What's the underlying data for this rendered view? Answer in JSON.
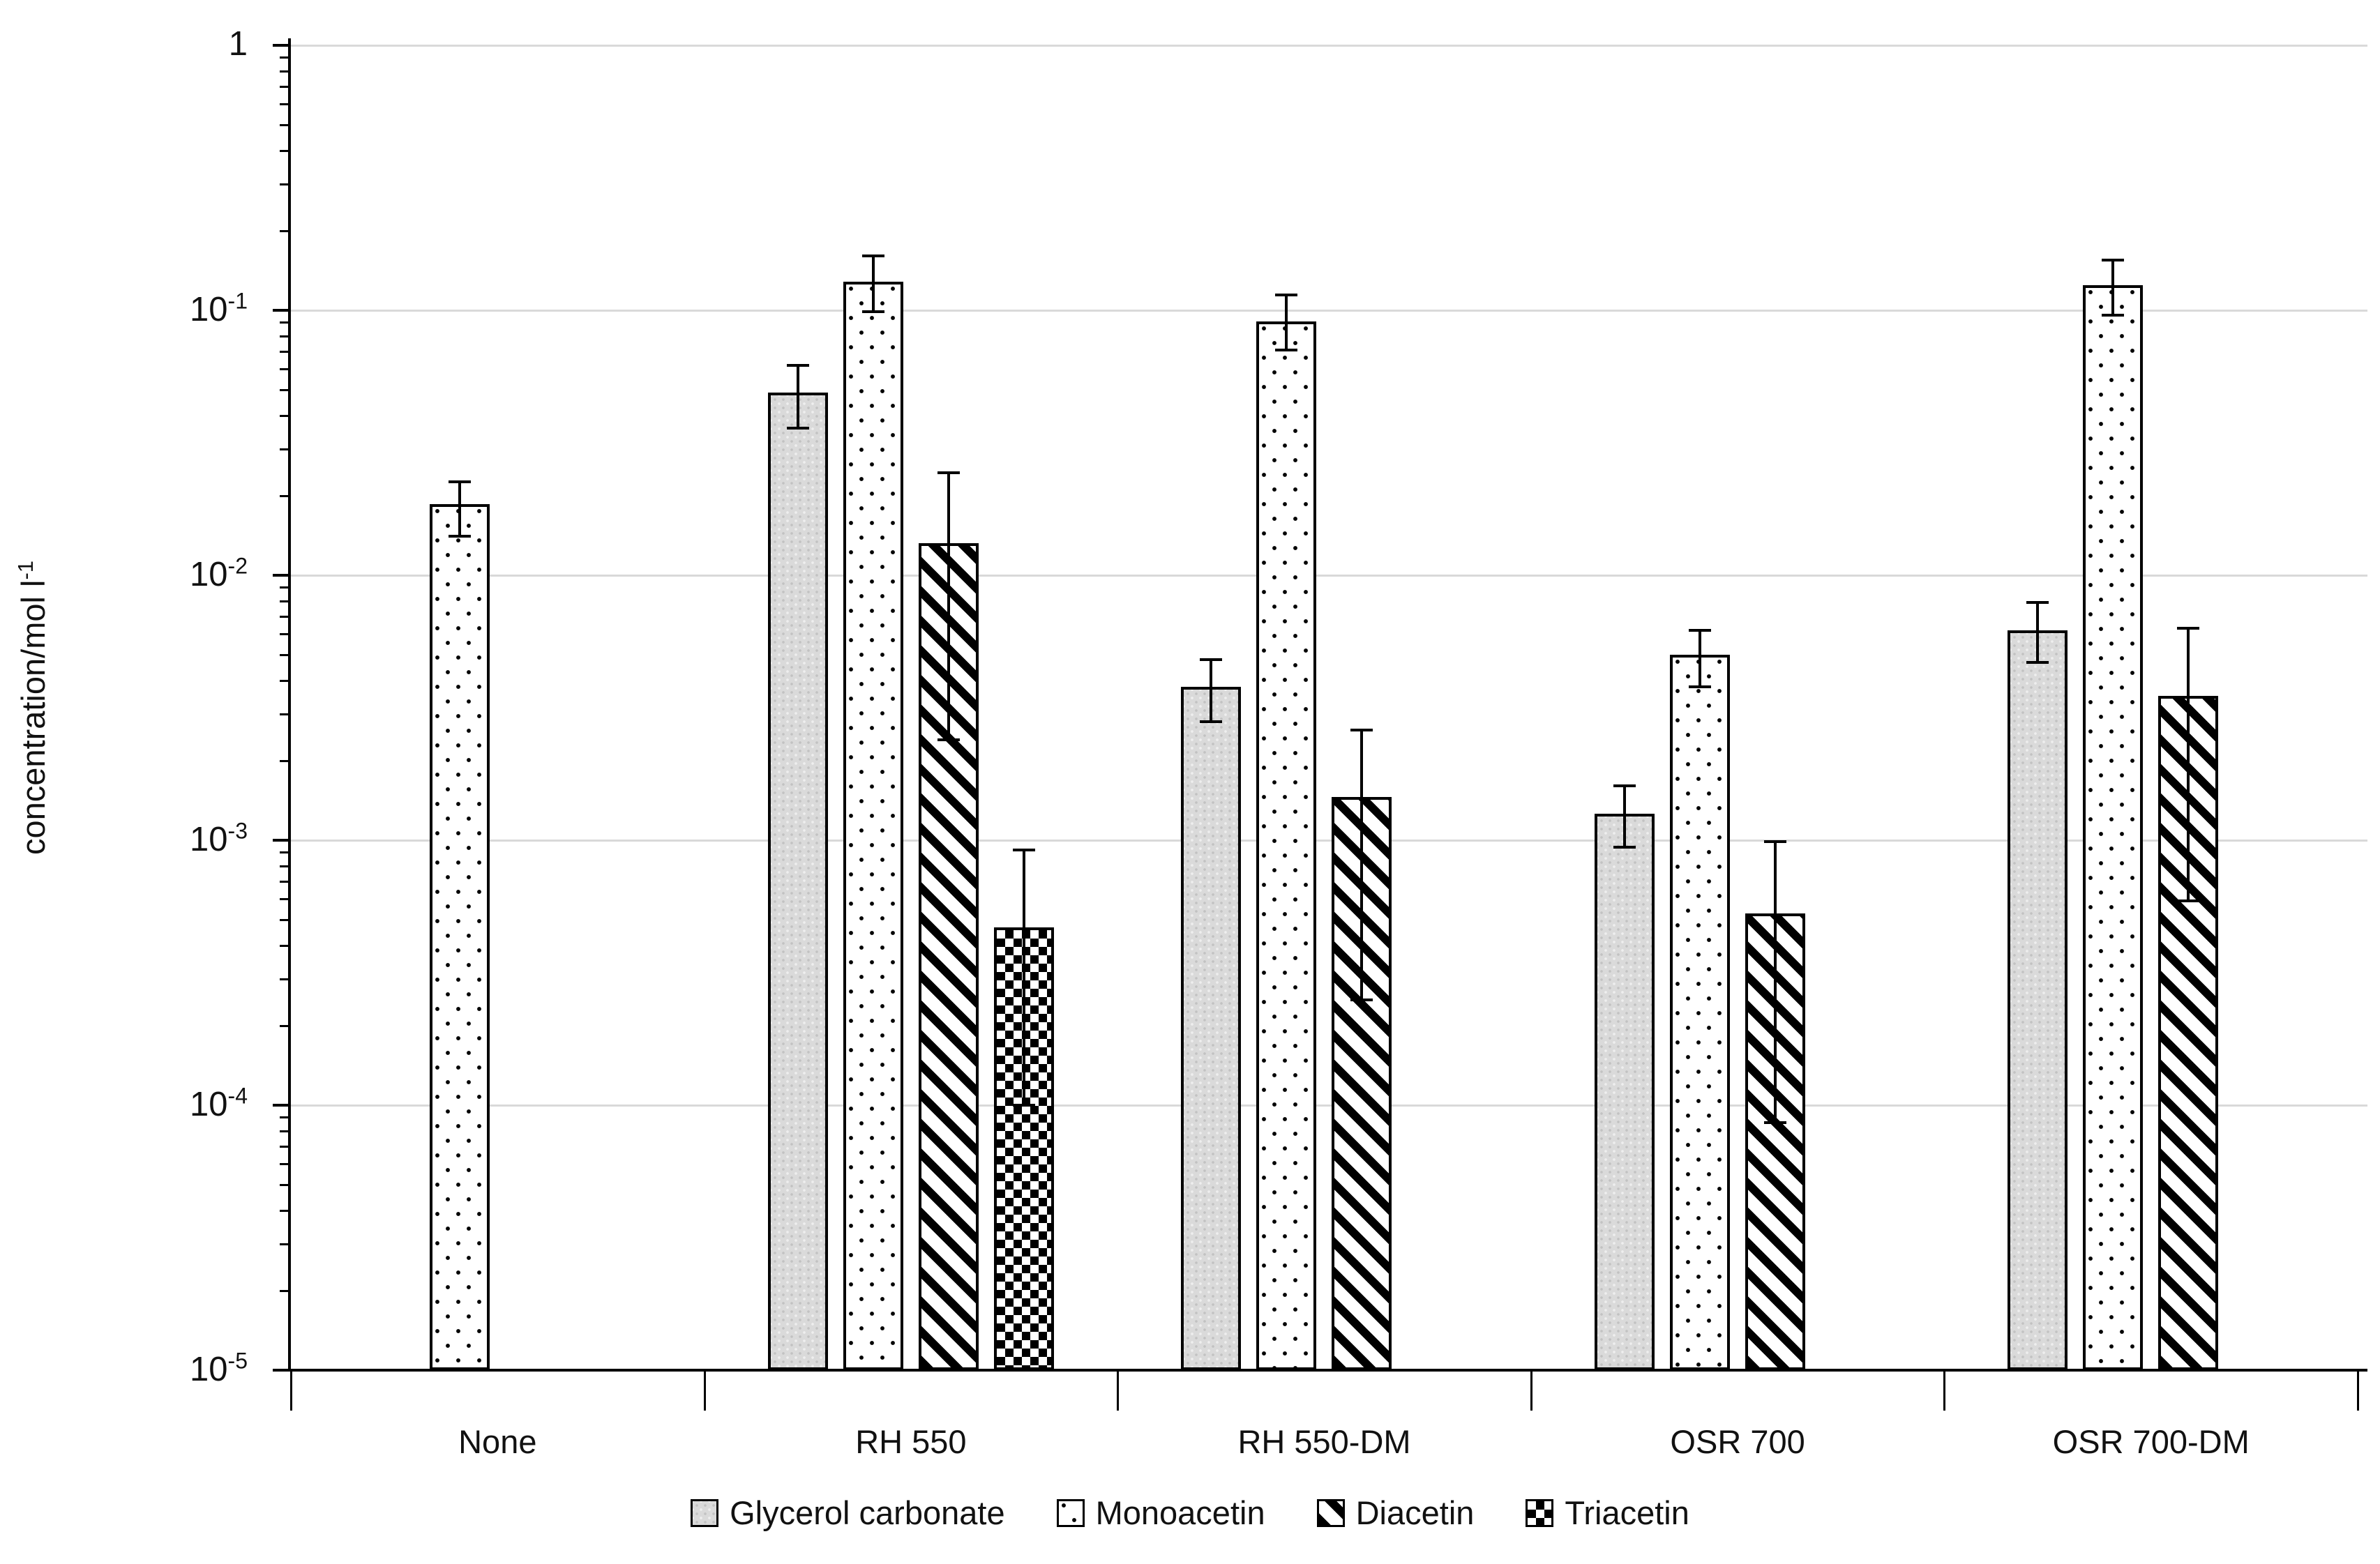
{
  "chart_data": {
    "type": "bar",
    "title": "",
    "ylabel_base": "concentration/mol l",
    "ylabel_sup": "-1",
    "xlabel": "",
    "y_scale": "log",
    "ylim": [
      1e-05,
      1
    ],
    "grid": "horizontal-decades",
    "legend_position": "bottom",
    "categories": [
      "None",
      "RH 550",
      "RH 550-DM",
      "OSR 700",
      "OSR 700-DM"
    ],
    "y_ticks": [
      {
        "base": "1",
        "exp": "",
        "value": 1
      },
      {
        "base": "10",
        "exp": "-1",
        "value": 0.1
      },
      {
        "base": "10",
        "exp": "-2",
        "value": 0.01
      },
      {
        "base": "10",
        "exp": "-3",
        "value": 0.001
      },
      {
        "base": "10",
        "exp": "-4",
        "value": 0.0001
      },
      {
        "base": "10",
        "exp": "-5",
        "value": 1e-05
      }
    ],
    "series": [
      {
        "name": "Glycerol carbonate",
        "pattern": "speckle-gray",
        "values": [
          null,
          0.049,
          0.0038,
          0.00126,
          0.0062
        ],
        "err_low": [
          null,
          0.036,
          0.0028,
          0.00094,
          0.0047
        ],
        "err_high": [
          null,
          0.062,
          0.0048,
          0.0016,
          0.0079
        ]
      },
      {
        "name": "Monoacetin",
        "pattern": "dots",
        "values": [
          0.0185,
          0.128,
          0.091,
          0.005,
          0.124
        ],
        "err_low": [
          0.014,
          0.099,
          0.071,
          0.0038,
          0.096
        ],
        "err_high": [
          0.0225,
          0.16,
          0.114,
          0.0062,
          0.155
        ]
      },
      {
        "name": "Diacetin",
        "pattern": "stripes-down",
        "values": [
          null,
          0.0132,
          0.00146,
          0.00053,
          0.0035
        ],
        "err_low": [
          null,
          0.0024,
          0.00025,
          8.6e-05,
          0.00059
        ],
        "err_high": [
          null,
          0.0244,
          0.0026,
          0.00099,
          0.0063
        ]
      },
      {
        "name": "Triacetin",
        "pattern": "checker",
        "values": [
          null,
          0.00047,
          null,
          null,
          null
        ],
        "err_low": [
          null,
          0.0001,
          null,
          null,
          null
        ],
        "err_high": [
          null,
          0.00092,
          null,
          null,
          null
        ]
      }
    ]
  }
}
